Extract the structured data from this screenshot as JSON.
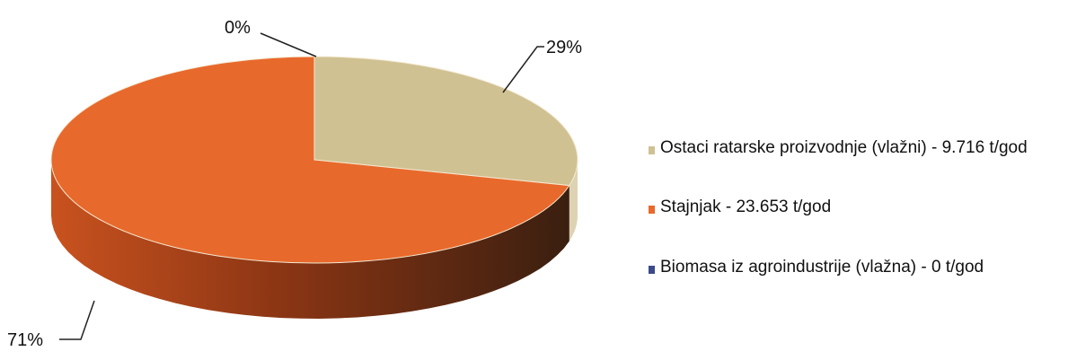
{
  "chart_data": {
    "type": "pie",
    "categories": [
      "Ostaci ratarske proizvodnje (vlažni) - 9.716 t/god",
      "Stajnjak - 23.653 t/god",
      "Biomasa iz agroindustrije (vlažna) - 0 t/god"
    ],
    "values": [
      29,
      71,
      0
    ],
    "value_labels": [
      "29%",
      "71%",
      "0%"
    ],
    "colors": [
      "#cfc192",
      "#e8692c",
      "#3b4a8c"
    ],
    "legend": "right"
  }
}
